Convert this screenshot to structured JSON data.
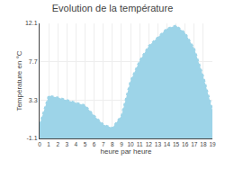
{
  "chart_data": {
    "type": "area",
    "title": "Evolution de la température",
    "x_label": "heure par heure",
    "y_label": "Température en °C",
    "x": [
      0,
      1,
      2,
      3,
      4,
      5,
      6,
      7,
      8,
      9,
      10,
      11,
      12,
      13,
      14,
      15,
      16,
      17,
      18,
      19
    ],
    "values": [
      0.5,
      3.8,
      3.6,
      3.3,
      3.0,
      2.7,
      1.5,
      0.5,
      0.1,
      1.5,
      5.5,
      7.8,
      9.5,
      10.5,
      11.5,
      11.85,
      11.0,
      9.2,
      6.0,
      2.2
    ],
    "color": "#9dd4e8",
    "line_style": "dotted",
    "xlim": [
      0,
      19
    ],
    "xticks": [
      0,
      1,
      2,
      3,
      4,
      5,
      6,
      7,
      8,
      9,
      10,
      11,
      12,
      13,
      14,
      15,
      16,
      17,
      18,
      19
    ],
    "ylim": [
      -1.1,
      12.1
    ],
    "yticks": [
      -1.1,
      3.3,
      7.7,
      12.1
    ],
    "grid": true
  }
}
